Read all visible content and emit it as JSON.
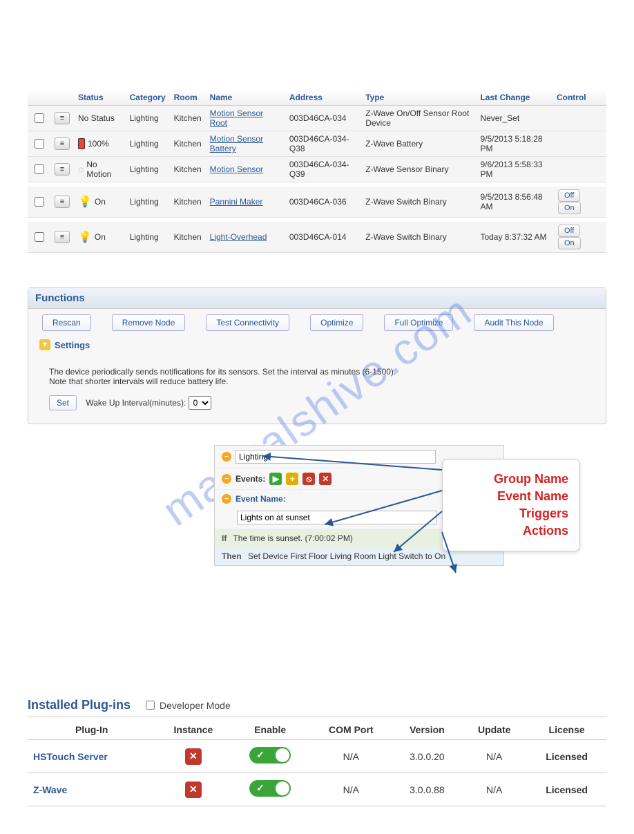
{
  "watermark": "manualshive.com",
  "devices": {
    "headers": [
      "",
      "",
      "Status",
      "Category",
      "Room",
      "Name",
      "Address",
      "Type",
      "Last Change",
      "Control"
    ],
    "rows": [
      {
        "status_icon": "none",
        "status": "No Status",
        "category": "Lighting",
        "room": "Kitchen",
        "name": "Motion Sensor Root",
        "address": "003D46CA-034",
        "type": "Z-Wave On/Off Sensor Root Device",
        "last_change": "Never_Set",
        "controls": [],
        "group_gap": false
      },
      {
        "status_icon": "battery",
        "status": "100%",
        "category": "Lighting",
        "room": "Kitchen",
        "name": "Motion Sensor Battery",
        "address": "003D46CA-034-Q38",
        "type": "Z-Wave Battery",
        "last_change": "9/5/2013 5:18:28 PM",
        "controls": [],
        "group_gap": false
      },
      {
        "status_icon": "motion",
        "status": "No Motion",
        "category": "Lighting",
        "room": "Kitchen",
        "name": "Motion Sensor",
        "address": "003D46CA-034-Q39",
        "type": "Z-Wave Sensor Binary",
        "last_change": "9/6/2013 5:58:33 PM",
        "controls": [],
        "group_gap": false
      },
      {
        "status_icon": "bulb",
        "status": "On",
        "category": "Lighting",
        "room": "Kitchen",
        "name": "Pannini Maker",
        "address": "003D46CA-036",
        "type": "Z-Wave Switch Binary",
        "last_change": "9/5/2013 8:56:48 AM",
        "controls": [
          "Off",
          "On"
        ],
        "group_gap": true
      },
      {
        "status_icon": "bulb",
        "status": "On",
        "category": "Lighting",
        "room": "Kitchen",
        "name": "Light-Overhead",
        "address": "003D46CA-014",
        "type": "Z-Wave Switch Binary",
        "last_change": "Today 8:37:32 AM",
        "controls": [
          "Off",
          "On"
        ],
        "group_gap": true
      }
    ]
  },
  "functions": {
    "title": "Functions",
    "buttons": [
      "Rescan",
      "Remove Node",
      "Test Connectivity",
      "Optimize",
      "Full Optimize",
      "Audit This Node"
    ],
    "settings_label": "Settings",
    "settings_text1": "The device periodically sends notifications for its sensors. Set the interval as minutes (6-1500).",
    "settings_text2": "Note that shorter intervals will reduce battery life.",
    "set_label": "Set",
    "interval_label": "Wake Up Interval(minutes):",
    "interval_value": "0"
  },
  "events": {
    "group_value": "Lighting",
    "events_label": "Events:",
    "event_name_label": "Event Name:",
    "event_name_value": "Lights on at sunset",
    "if_kw": "If",
    "if_text": "The time is sunset. (7:00:02 PM)",
    "then_kw": "Then",
    "then_text": "Set Device First Floor Living Room Light Switch to On",
    "callouts": [
      "Group Name",
      "Event Name",
      "Triggers",
      "Actions"
    ],
    "callout_color": "#d62222"
  },
  "plugins": {
    "title": "Installed Plug-ins",
    "devmode_label": "Developer Mode",
    "headers": [
      "Plug-In",
      "Instance",
      "Enable",
      "COM Port",
      "Version",
      "Update",
      "License"
    ],
    "rows": [
      {
        "name": "HSTouch Server",
        "com": "N/A",
        "version": "3.0.0.20",
        "update": "N/A",
        "license": "Licensed"
      },
      {
        "name": "Z-Wave",
        "com": "N/A",
        "version": "3.0.0.88",
        "update": "N/A",
        "license": "Licensed"
      }
    ]
  },
  "colors": {
    "header_blue": "#2b5797",
    "callout_red": "#d62222",
    "toggle_green": "#3aa63a",
    "delete_red": "#c0392b",
    "collapse_orange": "#f5a623"
  }
}
